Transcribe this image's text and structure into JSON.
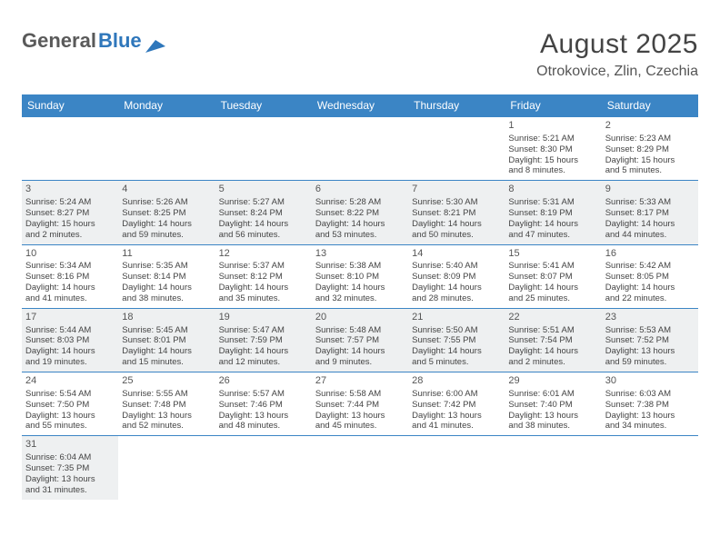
{
  "logo": {
    "part1": "General",
    "part2": "Blue"
  },
  "title": "August 2025",
  "location": "Otrokovice, Zlin, Czechia",
  "colors": {
    "header_bg": "#3b85c5",
    "header_text": "#ffffff",
    "cell_border": "#3b85c5",
    "shade_bg": "#eef0f1",
    "logo_gray": "#5a5a5a",
    "logo_blue": "#2f77bb"
  },
  "day_names": [
    "Sunday",
    "Monday",
    "Tuesday",
    "Wednesday",
    "Thursday",
    "Friday",
    "Saturday"
  ],
  "weeks": [
    [
      {
        "empty": true
      },
      {
        "empty": true
      },
      {
        "empty": true
      },
      {
        "empty": true
      },
      {
        "empty": true
      },
      {
        "date": "1",
        "sunrise": "Sunrise: 5:21 AM",
        "sunset": "Sunset: 8:30 PM",
        "daylight1": "Daylight: 15 hours",
        "daylight2": "and 8 minutes."
      },
      {
        "date": "2",
        "sunrise": "Sunrise: 5:23 AM",
        "sunset": "Sunset: 8:29 PM",
        "daylight1": "Daylight: 15 hours",
        "daylight2": "and 5 minutes."
      }
    ],
    [
      {
        "date": "3",
        "sunrise": "Sunrise: 5:24 AM",
        "sunset": "Sunset: 8:27 PM",
        "daylight1": "Daylight: 15 hours",
        "daylight2": "and 2 minutes.",
        "shaded": true
      },
      {
        "date": "4",
        "sunrise": "Sunrise: 5:26 AM",
        "sunset": "Sunset: 8:25 PM",
        "daylight1": "Daylight: 14 hours",
        "daylight2": "and 59 minutes.",
        "shaded": true
      },
      {
        "date": "5",
        "sunrise": "Sunrise: 5:27 AM",
        "sunset": "Sunset: 8:24 PM",
        "daylight1": "Daylight: 14 hours",
        "daylight2": "and 56 minutes.",
        "shaded": true
      },
      {
        "date": "6",
        "sunrise": "Sunrise: 5:28 AM",
        "sunset": "Sunset: 8:22 PM",
        "daylight1": "Daylight: 14 hours",
        "daylight2": "and 53 minutes.",
        "shaded": true
      },
      {
        "date": "7",
        "sunrise": "Sunrise: 5:30 AM",
        "sunset": "Sunset: 8:21 PM",
        "daylight1": "Daylight: 14 hours",
        "daylight2": "and 50 minutes.",
        "shaded": true
      },
      {
        "date": "8",
        "sunrise": "Sunrise: 5:31 AM",
        "sunset": "Sunset: 8:19 PM",
        "daylight1": "Daylight: 14 hours",
        "daylight2": "and 47 minutes.",
        "shaded": true
      },
      {
        "date": "9",
        "sunrise": "Sunrise: 5:33 AM",
        "sunset": "Sunset: 8:17 PM",
        "daylight1": "Daylight: 14 hours",
        "daylight2": "and 44 minutes.",
        "shaded": true
      }
    ],
    [
      {
        "date": "10",
        "sunrise": "Sunrise: 5:34 AM",
        "sunset": "Sunset: 8:16 PM",
        "daylight1": "Daylight: 14 hours",
        "daylight2": "and 41 minutes."
      },
      {
        "date": "11",
        "sunrise": "Sunrise: 5:35 AM",
        "sunset": "Sunset: 8:14 PM",
        "daylight1": "Daylight: 14 hours",
        "daylight2": "and 38 minutes."
      },
      {
        "date": "12",
        "sunrise": "Sunrise: 5:37 AM",
        "sunset": "Sunset: 8:12 PM",
        "daylight1": "Daylight: 14 hours",
        "daylight2": "and 35 minutes."
      },
      {
        "date": "13",
        "sunrise": "Sunrise: 5:38 AM",
        "sunset": "Sunset: 8:10 PM",
        "daylight1": "Daylight: 14 hours",
        "daylight2": "and 32 minutes."
      },
      {
        "date": "14",
        "sunrise": "Sunrise: 5:40 AM",
        "sunset": "Sunset: 8:09 PM",
        "daylight1": "Daylight: 14 hours",
        "daylight2": "and 28 minutes."
      },
      {
        "date": "15",
        "sunrise": "Sunrise: 5:41 AM",
        "sunset": "Sunset: 8:07 PM",
        "daylight1": "Daylight: 14 hours",
        "daylight2": "and 25 minutes."
      },
      {
        "date": "16",
        "sunrise": "Sunrise: 5:42 AM",
        "sunset": "Sunset: 8:05 PM",
        "daylight1": "Daylight: 14 hours",
        "daylight2": "and 22 minutes."
      }
    ],
    [
      {
        "date": "17",
        "sunrise": "Sunrise: 5:44 AM",
        "sunset": "Sunset: 8:03 PM",
        "daylight1": "Daylight: 14 hours",
        "daylight2": "and 19 minutes.",
        "shaded": true
      },
      {
        "date": "18",
        "sunrise": "Sunrise: 5:45 AM",
        "sunset": "Sunset: 8:01 PM",
        "daylight1": "Daylight: 14 hours",
        "daylight2": "and 15 minutes.",
        "shaded": true
      },
      {
        "date": "19",
        "sunrise": "Sunrise: 5:47 AM",
        "sunset": "Sunset: 7:59 PM",
        "daylight1": "Daylight: 14 hours",
        "daylight2": "and 12 minutes.",
        "shaded": true
      },
      {
        "date": "20",
        "sunrise": "Sunrise: 5:48 AM",
        "sunset": "Sunset: 7:57 PM",
        "daylight1": "Daylight: 14 hours",
        "daylight2": "and 9 minutes.",
        "shaded": true
      },
      {
        "date": "21",
        "sunrise": "Sunrise: 5:50 AM",
        "sunset": "Sunset: 7:55 PM",
        "daylight1": "Daylight: 14 hours",
        "daylight2": "and 5 minutes.",
        "shaded": true
      },
      {
        "date": "22",
        "sunrise": "Sunrise: 5:51 AM",
        "sunset": "Sunset: 7:54 PM",
        "daylight1": "Daylight: 14 hours",
        "daylight2": "and 2 minutes.",
        "shaded": true
      },
      {
        "date": "23",
        "sunrise": "Sunrise: 5:53 AM",
        "sunset": "Sunset: 7:52 PM",
        "daylight1": "Daylight: 13 hours",
        "daylight2": "and 59 minutes.",
        "shaded": true
      }
    ],
    [
      {
        "date": "24",
        "sunrise": "Sunrise: 5:54 AM",
        "sunset": "Sunset: 7:50 PM",
        "daylight1": "Daylight: 13 hours",
        "daylight2": "and 55 minutes."
      },
      {
        "date": "25",
        "sunrise": "Sunrise: 5:55 AM",
        "sunset": "Sunset: 7:48 PM",
        "daylight1": "Daylight: 13 hours",
        "daylight2": "and 52 minutes."
      },
      {
        "date": "26",
        "sunrise": "Sunrise: 5:57 AM",
        "sunset": "Sunset: 7:46 PM",
        "daylight1": "Daylight: 13 hours",
        "daylight2": "and 48 minutes."
      },
      {
        "date": "27",
        "sunrise": "Sunrise: 5:58 AM",
        "sunset": "Sunset: 7:44 PM",
        "daylight1": "Daylight: 13 hours",
        "daylight2": "and 45 minutes."
      },
      {
        "date": "28",
        "sunrise": "Sunrise: 6:00 AM",
        "sunset": "Sunset: 7:42 PM",
        "daylight1": "Daylight: 13 hours",
        "daylight2": "and 41 minutes."
      },
      {
        "date": "29",
        "sunrise": "Sunrise: 6:01 AM",
        "sunset": "Sunset: 7:40 PM",
        "daylight1": "Daylight: 13 hours",
        "daylight2": "and 38 minutes."
      },
      {
        "date": "30",
        "sunrise": "Sunrise: 6:03 AM",
        "sunset": "Sunset: 7:38 PM",
        "daylight1": "Daylight: 13 hours",
        "daylight2": "and 34 minutes."
      }
    ],
    [
      {
        "date": "31",
        "sunrise": "Sunrise: 6:04 AM",
        "sunset": "Sunset: 7:35 PM",
        "daylight1": "Daylight: 13 hours",
        "daylight2": "and 31 minutes.",
        "shaded": true
      },
      {
        "empty": true
      },
      {
        "empty": true
      },
      {
        "empty": true
      },
      {
        "empty": true
      },
      {
        "empty": true
      },
      {
        "empty": true
      }
    ]
  ]
}
